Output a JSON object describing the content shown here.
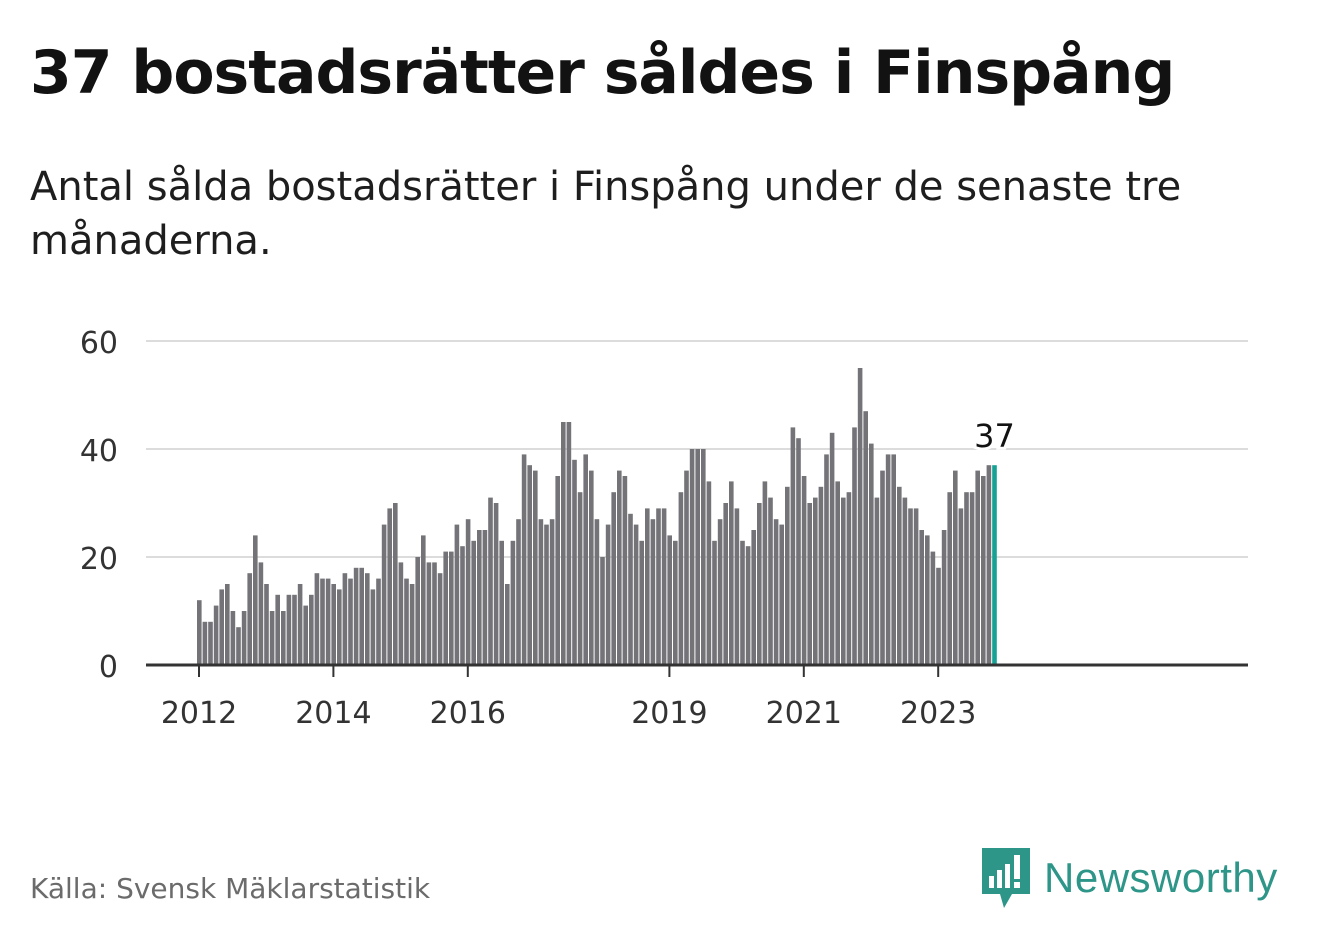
{
  "header": {
    "title": "37 bostadsrätter såldes i Finspång",
    "subtitle": "Antal sålda bostadsrätter i Finspång under de senaste tre månaderna."
  },
  "footer": {
    "source": "Källa: Svensk Mäklarstatistik",
    "brand": "Newsworthy"
  },
  "colors": {
    "bar": "#737378",
    "highlight": "#17a195",
    "grid": "#dcdcdc",
    "axis": "#333333",
    "brand": "#2e9589"
  },
  "chart_data": {
    "type": "bar",
    "x_start": "2012-01",
    "frequency": "monthly",
    "xticks": [
      "2012",
      "2014",
      "2016",
      "2019",
      "2021",
      "2023"
    ],
    "yticks": [
      0,
      20,
      40,
      60
    ],
    "ylim": [
      0,
      60
    ],
    "grid": true,
    "highlight_label": "37",
    "values": [
      12,
      8,
      8,
      11,
      14,
      15,
      10,
      7,
      10,
      17,
      24,
      19,
      15,
      10,
      13,
      10,
      13,
      13,
      15,
      11,
      13,
      17,
      16,
      16,
      15,
      14,
      17,
      16,
      18,
      18,
      17,
      14,
      16,
      26,
      29,
      30,
      19,
      16,
      15,
      20,
      24,
      19,
      19,
      17,
      21,
      21,
      26,
      22,
      27,
      23,
      25,
      25,
      31,
      30,
      23,
      15,
      23,
      27,
      39,
      37,
      36,
      27,
      26,
      27,
      35,
      45,
      45,
      38,
      32,
      39,
      36,
      27,
      20,
      26,
      32,
      36,
      35,
      28,
      26,
      23,
      29,
      27,
      29,
      29,
      24,
      23,
      32,
      36,
      40,
      40,
      40,
      34,
      23,
      27,
      30,
      34,
      29,
      23,
      22,
      25,
      30,
      34,
      31,
      27,
      26,
      33,
      44,
      42,
      35,
      30,
      31,
      33,
      39,
      43,
      34,
      31,
      32,
      44,
      55,
      47,
      41,
      31,
      36,
      39,
      39,
      33,
      31,
      29,
      29,
      25,
      24,
      21,
      18,
      25,
      32,
      36,
      29,
      32,
      32,
      36,
      35,
      37,
      37
    ]
  }
}
